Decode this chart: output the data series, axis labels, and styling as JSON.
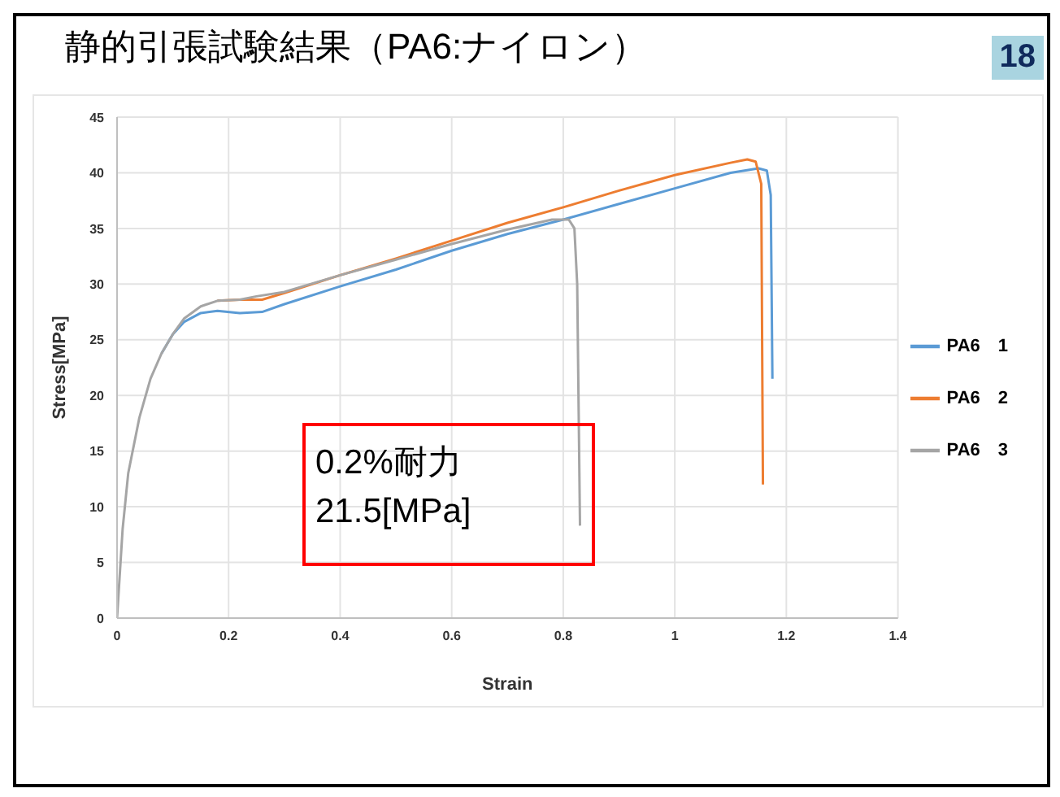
{
  "chart_data": {
    "type": "line",
    "title": "静的引張試験結果（PA6:ナイロン）",
    "xlabel": "Strain",
    "ylabel": "Stress[MPa]",
    "xlim": [
      0,
      1.4
    ],
    "xticks": [
      0,
      0.2,
      0.4,
      0.6,
      0.8,
      1,
      1.2,
      1.4
    ],
    "ylim": [
      0,
      45
    ],
    "yticks": [
      0,
      5,
      10,
      15,
      20,
      25,
      30,
      35,
      40,
      45
    ],
    "grid": true,
    "legend": "right",
    "marker": "none",
    "line_style": "solid",
    "annotations": [
      "0.2%耐力\n21.5[MPa]",
      "18"
    ],
    "series": [
      {
        "name": "PA6　1",
        "color": "#5b9bd5",
        "x": [
          0.08,
          0.1,
          0.12,
          0.15,
          0.18,
          0.22,
          0.26,
          0.3,
          0.4,
          0.5,
          0.6,
          0.7,
          0.8,
          0.9,
          1.0,
          1.1,
          1.15,
          1.165,
          1.172,
          1.175
        ],
        "values": [
          23.8,
          25.5,
          26.6,
          27.4,
          27.6,
          27.4,
          27.5,
          28.2,
          29.8,
          31.3,
          33,
          34.5,
          35.8,
          37.2,
          38.6,
          40,
          40.4,
          40.2,
          38,
          21.5
        ]
      },
      {
        "name": "PA6　2",
        "color": "#ed7d31",
        "x": [
          0.18,
          0.22,
          0.26,
          0.3,
          0.4,
          0.5,
          0.6,
          0.7,
          0.8,
          0.9,
          1.0,
          1.1,
          1.13,
          1.145,
          1.155,
          1.158
        ],
        "values": [
          28.5,
          28.6,
          28.6,
          29.2,
          30.8,
          32.3,
          33.9,
          35.5,
          36.9,
          38.4,
          39.8,
          40.9,
          41.2,
          41,
          39,
          12
        ]
      },
      {
        "name": "PA6　3",
        "color": "#a5a5a5",
        "x": [
          0,
          0.01,
          0.02,
          0.04,
          0.06,
          0.08,
          0.1,
          0.12,
          0.15,
          0.18,
          0.22,
          0.25,
          0.3,
          0.4,
          0.5,
          0.6,
          0.7,
          0.78,
          0.81,
          0.82,
          0.825,
          0.83
        ],
        "values": [
          0,
          8,
          13,
          18,
          21.5,
          23.8,
          25.5,
          26.9,
          28,
          28.5,
          28.6,
          28.9,
          29.3,
          30.8,
          32.2,
          33.6,
          34.9,
          35.8,
          35.8,
          35,
          30,
          8.3
        ]
      }
    ]
  }
}
